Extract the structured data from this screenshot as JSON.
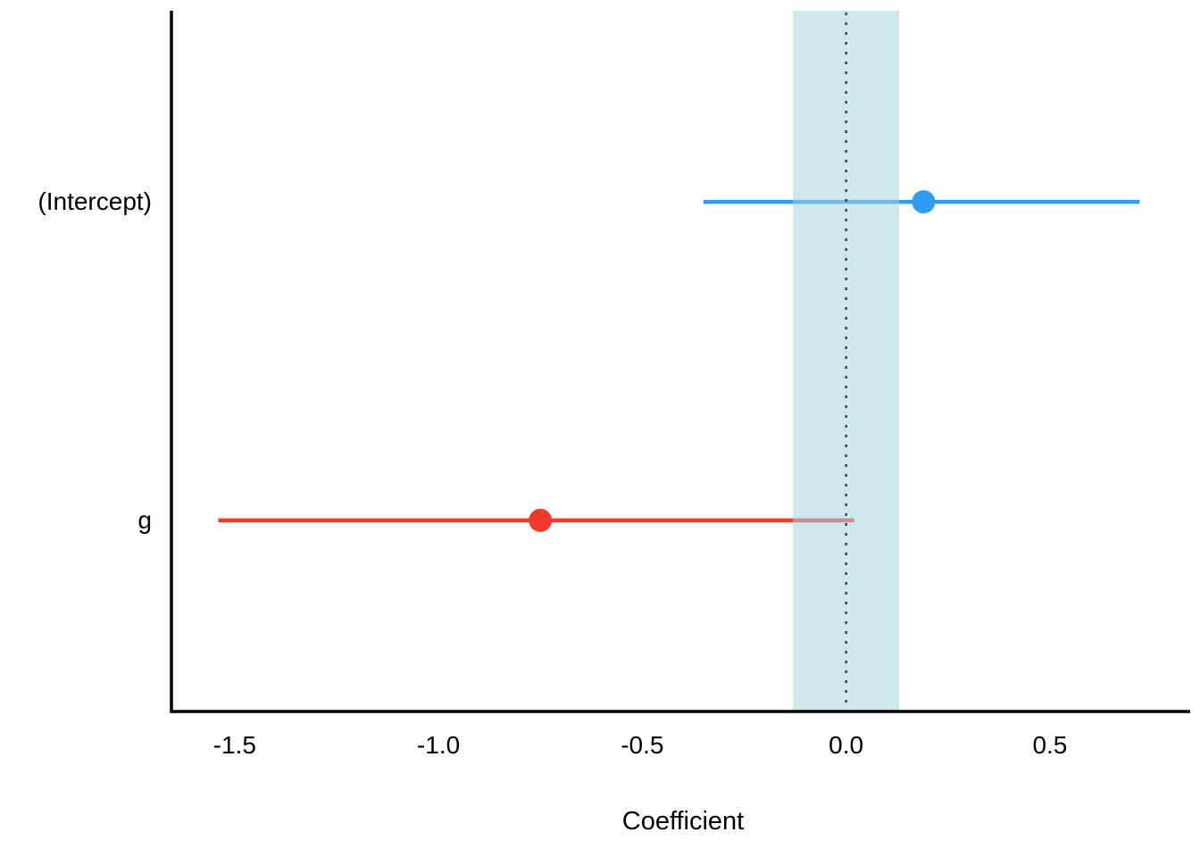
{
  "chart_data": {
    "type": "scatter",
    "subtype": "coefficient-dot-whisker-plot",
    "title": "",
    "xlabel": "Coefficient",
    "ylabel": "",
    "categories": [
      "(Intercept)",
      "g"
    ],
    "series": [
      {
        "name": "(Intercept)",
        "estimate": 0.19,
        "ci_low": -0.35,
        "ci_high": 0.72,
        "color": "#2E9CF0"
      },
      {
        "name": "g",
        "estimate": -0.75,
        "ci_low": -1.54,
        "ci_high": 0.02,
        "color": "#EF3B2C"
      }
    ],
    "xticks": [
      -1.5,
      -1.0,
      -0.5,
      0.0,
      0.5
    ],
    "xtick_labels": [
      "-1.5",
      "-1.0",
      "-0.5",
      "0.0",
      "0.5"
    ],
    "xlim": [
      -1.655,
      0.855
    ],
    "reference_line": {
      "x": 0,
      "style": "dotted",
      "color": "#454545"
    },
    "zero_band": {
      "x_min": -0.13,
      "x_max": 0.13,
      "fill": "#A8D5DF",
      "opacity": 0.55
    },
    "grid": false,
    "legend": false,
    "background": "#FFFFFF",
    "axis_color": "#000000"
  }
}
